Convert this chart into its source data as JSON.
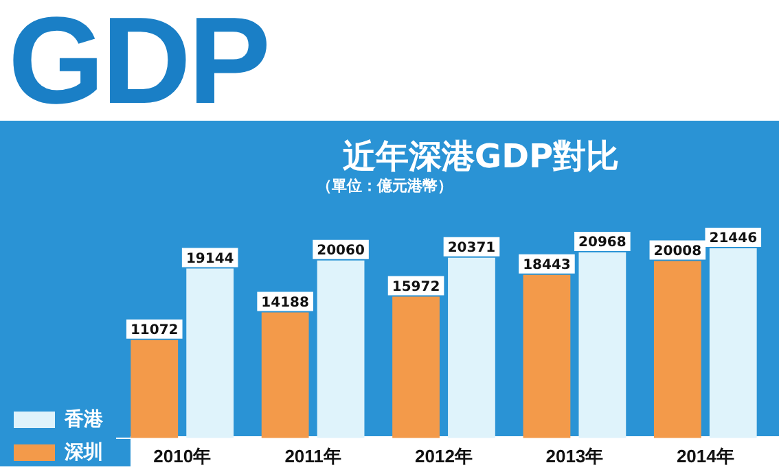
{
  "chart_data": {
    "type": "bar",
    "title": "近年深港GDP對比",
    "subtitle": "（單位：億元港幣）",
    "annotations": [
      "GDP"
    ],
    "categories": [
      "2010年",
      "2011年",
      "2012年",
      "2013年",
      "2014年"
    ],
    "series": [
      {
        "name": "深圳",
        "color": "#f39a4a",
        "values": [
          11072,
          14188,
          15972,
          18443,
          20008
        ]
      },
      {
        "name": "香港",
        "color": "#dff3fb",
        "values": [
          19144,
          20060,
          20371,
          20968,
          21446
        ]
      }
    ],
    "data_labels": true,
    "legend": "bottom left",
    "grid": false
  }
}
